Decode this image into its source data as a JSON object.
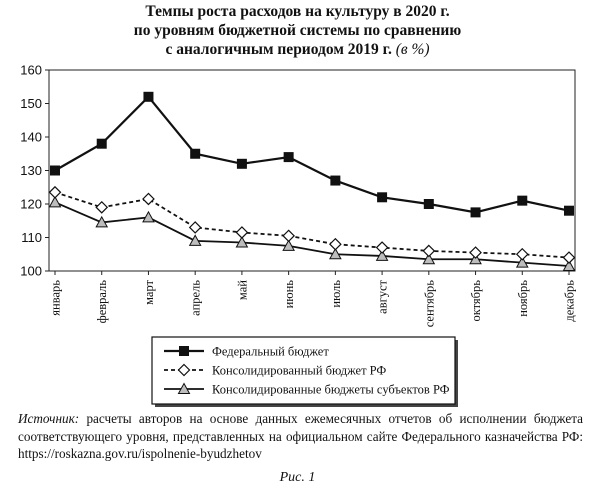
{
  "chart_data": {
    "type": "line",
    "title_lines": [
      "Темпы роста расходов на культуру в 2020 г.",
      "по уровням бюджетной системы по сравнению",
      "с аналогичным периодом 2019 г."
    ],
    "title_unit": "(в %)",
    "categories": [
      "январь",
      "февраль",
      "март",
      "апрель",
      "май",
      "июнь",
      "июль",
      "август",
      "сентябрь",
      "октябрь",
      "ноябрь",
      "декабрь"
    ],
    "ylim": [
      100,
      160
    ],
    "yticks": [
      "100",
      "110",
      "120",
      "130",
      "140",
      "150",
      "160"
    ],
    "grid": false,
    "legend_position": "bottom",
    "series": [
      {
        "name": "Федеральный бюджет",
        "marker": "square",
        "dash": "solid",
        "values": [
          130,
          138,
          152,
          135,
          132,
          134,
          127,
          122,
          120,
          117.5,
          121,
          118
        ]
      },
      {
        "name": "Консолидированный бюджет РФ",
        "marker": "diamond",
        "dash": "dashed",
        "values": [
          123.5,
          119,
          121.5,
          113,
          111.5,
          110.5,
          108,
          107,
          106,
          105.5,
          105,
          104
        ]
      },
      {
        "name": "Консолидированные бюджеты субъектов РФ",
        "marker": "triangle",
        "dash": "solid",
        "values": [
          120.5,
          114.5,
          116,
          109,
          108.5,
          107.5,
          105,
          104.5,
          103.5,
          103.5,
          102.5,
          101.5
        ]
      }
    ]
  },
  "source": {
    "lead": "Источник:",
    "text": " расчеты авторов на основе данных ежемесячных отчетов об исполнении бюджета соответствующего уровня, представленных на официальном сайте Федерального казначейства РФ: https://roskazna.gov.ru/ispolnenie-byudzhetov"
  },
  "caption": "Рис. 1"
}
